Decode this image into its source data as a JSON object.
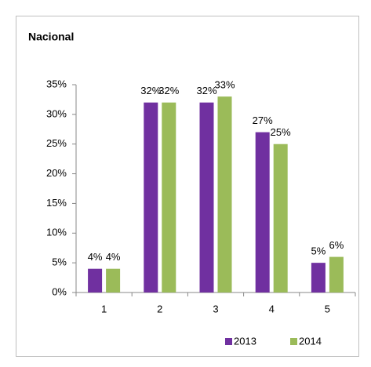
{
  "chart_data": {
    "type": "bar",
    "title": "Nacional",
    "categories": [
      "1",
      "2",
      "3",
      "4",
      "5"
    ],
    "series": [
      {
        "name": "2013",
        "color": "#7030a0",
        "values": [
          4,
          32,
          32,
          27,
          5
        ],
        "value_labels": [
          "4%",
          "32%",
          "32%",
          "27%",
          "5%"
        ]
      },
      {
        "name": "2014",
        "color": "#9bbb59",
        "values": [
          4,
          32,
          33,
          25,
          6
        ],
        "value_labels": [
          "4%",
          "32%",
          "33%",
          "25%",
          "6%"
        ]
      }
    ],
    "ylim": [
      0,
      35
    ],
    "yticks": [
      {
        "value": 0,
        "label": "0%"
      },
      {
        "value": 5,
        "label": "5%"
      },
      {
        "value": 10,
        "label": "10%"
      },
      {
        "value": 15,
        "label": "15%"
      },
      {
        "value": 20,
        "label": "20%"
      },
      {
        "value": 25,
        "label": "25%"
      },
      {
        "value": 30,
        "label": "30%"
      },
      {
        "value": 35,
        "label": "35%"
      }
    ],
    "legend": "bottom"
  }
}
